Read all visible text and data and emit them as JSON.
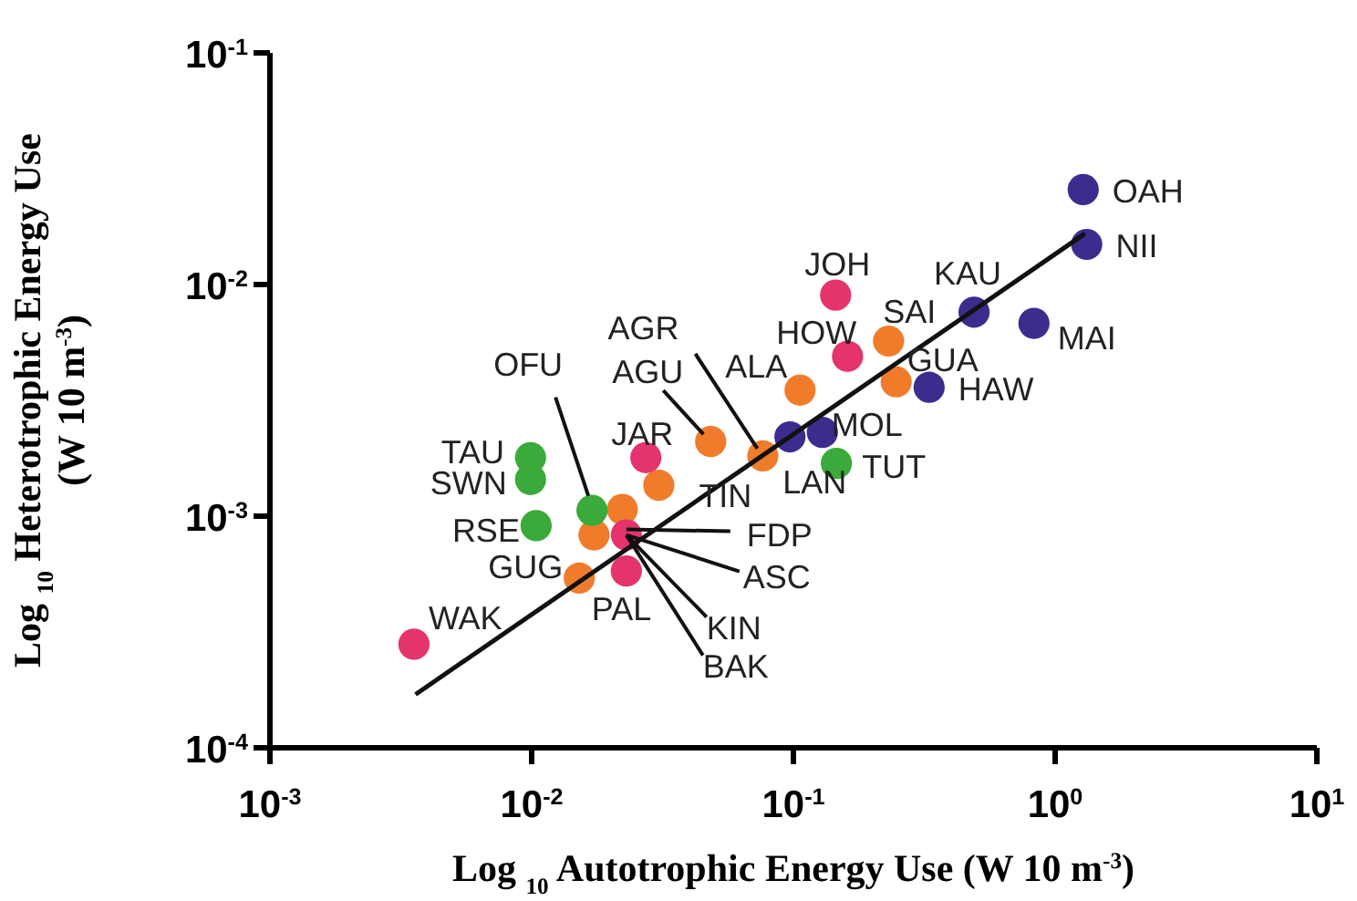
{
  "chart_data": {
    "type": "scatter",
    "xlabel": "Log $_{10}$ Autotrophic Energy Use (W 10 m$^{-3}$)",
    "ylabel": "Log $_{10}$ Heterotrophic Energy Use\n(W 10 m$^{-3}$)",
    "log": "xy",
    "grid": false,
    "marker": "circle",
    "xlim": [
      0.001,
      10
    ],
    "ylim": [
      0.0001,
      0.1
    ],
    "xticks": [
      {
        "value": 0.001,
        "label": "10$^{-3}$"
      },
      {
        "value": 0.01,
        "label": "10$^{-2}$"
      },
      {
        "value": 0.1,
        "label": "10$^{-1}$"
      },
      {
        "value": 1,
        "label": "10$^{0}$"
      },
      {
        "value": 10,
        "label": "10$^{1}$"
      }
    ],
    "yticks": [
      {
        "value": 0.0001,
        "label": "10$^{-4}$"
      },
      {
        "value": 0.001,
        "label": "10$^{-3}$"
      },
      {
        "value": 0.01,
        "label": "10$^{-2}$"
      },
      {
        "value": 0.1,
        "label": "10$^{-1}$"
      }
    ],
    "series": [
      {
        "color": "#3d2b8e",
        "x": [
          1.28,
          1.32,
          0.49,
          0.83,
          0.33,
          0.129,
          0.097
        ],
        "values": [
          0.0257,
          0.0149,
          0.0076,
          0.0068,
          0.0036,
          0.0023,
          0.0022
        ]
      },
      {
        "color": "#f07c2b",
        "x": [
          0.0152,
          0.0173,
          0.0222,
          0.0306,
          0.0483,
          0.0764,
          0.106,
          0.231,
          0.247
        ],
        "values": [
          0.00054,
          0.00083,
          0.00107,
          0.00136,
          0.0021,
          0.00182,
          0.0035,
          0.0057,
          0.0038
        ]
      },
      {
        "color": "#e5336c",
        "x": [
          0.00355,
          0.0273,
          0.023,
          0.023,
          0.145,
          0.161
        ],
        "values": [
          0.00028,
          0.00179,
          0.00083,
          0.00058,
          0.009,
          0.0049
        ]
      },
      {
        "color": "#3aaa3a",
        "x": [
          0.0099,
          0.0099,
          0.0104,
          0.017,
          0.146
        ],
        "values": [
          0.00179,
          0.00144,
          0.00091,
          0.00106,
          0.00169
        ]
      },
      {
        "type": "line",
        "marker": "none",
        "color": "#111111",
        "x": [
          0.0036,
          1.3
        ],
        "values": [
          0.00017,
          0.0166
        ]
      }
    ],
    "annotations": [
      {
        "text": "OAH",
        "x": 1.28,
        "y": 0.0257
      },
      {
        "text": "NII",
        "x": 1.32,
        "y": 0.0149
      },
      {
        "text": "KAU",
        "x": 0.49,
        "y": 0.0076
      },
      {
        "text": "MAI",
        "x": 0.83,
        "y": 0.0068
      },
      {
        "text": "HAW",
        "x": 0.33,
        "y": 0.0036
      },
      {
        "text": "GUA",
        "x": 0.247,
        "y": 0.0038
      },
      {
        "text": "SAI",
        "x": 0.231,
        "y": 0.0057
      },
      {
        "text": "JOH",
        "x": 0.145,
        "y": 0.009
      },
      {
        "text": "HOW",
        "x": 0.161,
        "y": 0.0049
      },
      {
        "text": "ALA",
        "x": 0.106,
        "y": 0.0035
      },
      {
        "text": "MOL",
        "x": 0.129,
        "y": 0.0023
      },
      {
        "text": "TUT",
        "x": 0.146,
        "y": 0.00169
      },
      {
        "text": "LAN",
        "x": 0.097,
        "y": 0.0022
      },
      {
        "text": "AGR",
        "x": 0.0764,
        "y": 0.00182
      },
      {
        "text": "AGU",
        "x": 0.0483,
        "y": 0.0021
      },
      {
        "text": "JAR",
        "x": 0.0273,
        "y": 0.00179
      },
      {
        "text": "TIN",
        "x": 0.0306,
        "y": 0.00136
      },
      {
        "text": "OFU",
        "x": 0.017,
        "y": 0.00106
      },
      {
        "text": "TAU",
        "x": 0.0099,
        "y": 0.00179
      },
      {
        "text": "SWN",
        "x": 0.0099,
        "y": 0.00144
      },
      {
        "text": "RSE",
        "x": 0.0104,
        "y": 0.00091
      },
      {
        "text": "GUG",
        "x": 0.0152,
        "y": 0.00054
      },
      {
        "text": "WAK",
        "x": 0.00355,
        "y": 0.00028
      },
      {
        "text": "PAL",
        "x": 0.023,
        "y": 0.00058
      },
      {
        "text": "FDP",
        "x": 0.023,
        "y": 0.00083
      },
      {
        "text": "ASC",
        "x": 0.023,
        "y": 0.00083
      },
      {
        "text": "KIN",
        "x": 0.023,
        "y": 0.00083
      },
      {
        "text": "BAK",
        "x": 0.023,
        "y": 0.00083
      }
    ]
  }
}
